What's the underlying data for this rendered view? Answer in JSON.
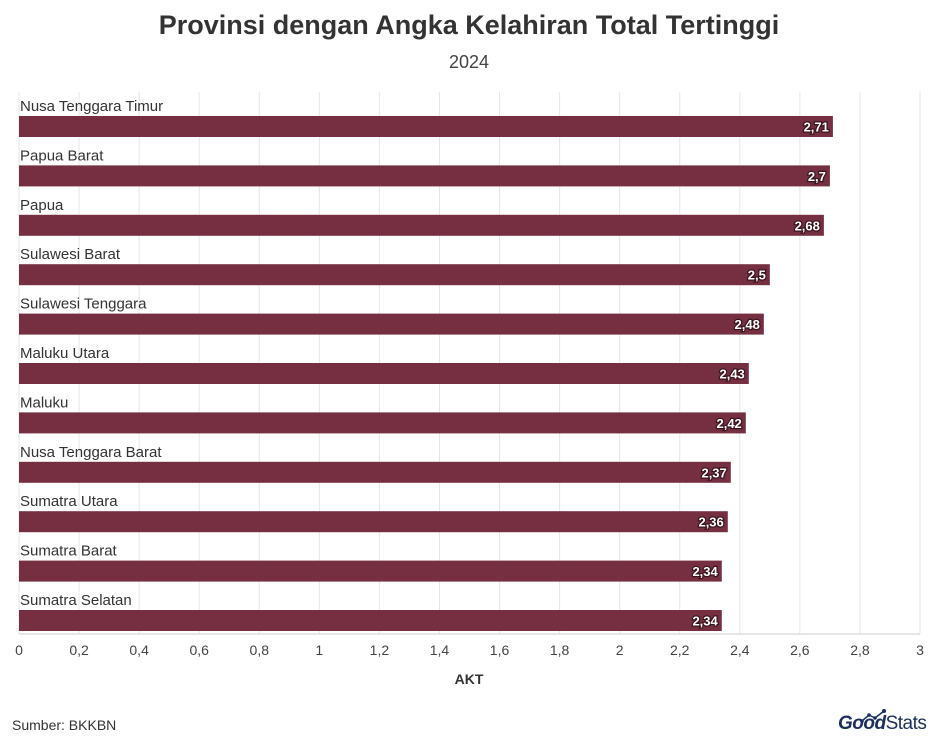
{
  "title": "Provinsi dengan Angka Kelahiran Total Tertinggi",
  "subtitle": "2024",
  "source": "Sumber: BKKBN",
  "brand": {
    "part1": "Good",
    "part2": "Stats"
  },
  "colors": {
    "bar": "#762f41",
    "grid": "#e6e6e6",
    "label_text": "#ffffff"
  },
  "chart_data": {
    "type": "bar",
    "orientation": "horizontal",
    "categories": [
      "Nusa Tenggara Timur",
      "Papua Barat",
      "Papua",
      "Sulawesi Barat",
      "Sulawesi Tenggara",
      "Maluku Utara",
      "Maluku",
      "Nusa Tenggara Barat",
      "Sumatra Utara",
      "Sumatra Barat",
      "Sumatra Selatan"
    ],
    "values": [
      2.71,
      2.7,
      2.68,
      2.5,
      2.48,
      2.43,
      2.42,
      2.37,
      2.36,
      2.34,
      2.34
    ],
    "value_labels": [
      "2,71",
      "2,7",
      "2,68",
      "2,5",
      "2,48",
      "2,43",
      "2,42",
      "2,37",
      "2,36",
      "2,34",
      "2,34"
    ],
    "xlabel": "AKT",
    "ylabel": "",
    "xlim": [
      0,
      3
    ],
    "xticks": [
      0,
      0.2,
      0.4,
      0.6,
      0.8,
      1,
      1.2,
      1.4,
      1.6,
      1.8,
      2,
      2.2,
      2.4,
      2.6,
      2.8,
      3
    ],
    "xtick_labels": [
      "0",
      "0,2",
      "0,4",
      "0,6",
      "0,8",
      "1",
      "1,2",
      "1,4",
      "1,6",
      "1,8",
      "2",
      "2,2",
      "2,4",
      "2,6",
      "2,8",
      "3"
    ],
    "grid": true
  }
}
